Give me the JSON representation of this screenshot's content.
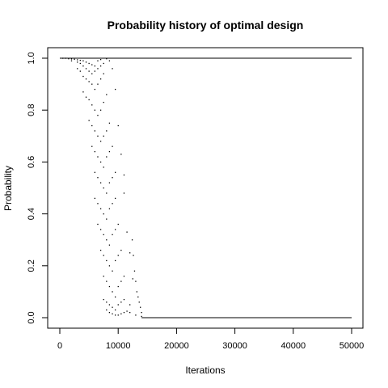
{
  "chart_data": {
    "type": "scatter",
    "title": "Probability history of optimal design",
    "xlabel": "Iterations",
    "ylabel": "Probability",
    "xlim": [
      0,
      50000
    ],
    "ylim": [
      0.0,
      1.0
    ],
    "x_ticks": [
      0,
      10000,
      20000,
      30000,
      40000,
      50000
    ],
    "x_tick_labels": [
      "0",
      "10000",
      "20000",
      "30000",
      "40000",
      "50000"
    ],
    "y_ticks": [
      0.0,
      0.2,
      0.4,
      0.6,
      0.8,
      1.0
    ],
    "y_tick_labels": [
      "0.0",
      "0.2",
      "0.4",
      "0.6",
      "0.8",
      "1.0"
    ],
    "grid": false,
    "series": [
      {
        "color": "#000000",
        "marker": "point",
        "segments": [
          {
            "x": [
              0,
              50000
            ],
            "y": [
              1.0,
              1.0
            ]
          },
          {
            "x": [
              14000,
              50000
            ],
            "y": [
              0.0,
              0.0
            ]
          }
        ],
        "points": [
          [
            500,
            1.0
          ],
          [
            1000,
            1.0
          ],
          [
            1500,
            0.998
          ],
          [
            2000,
            0.997
          ],
          [
            2500,
            0.996
          ],
          [
            3000,
            0.994
          ],
          [
            3500,
            0.992
          ],
          [
            4000,
            0.99
          ],
          [
            4500,
            0.985
          ],
          [
            5000,
            0.98
          ],
          [
            5500,
            0.975
          ],
          [
            6000,
            0.97
          ],
          [
            6500,
            0.99
          ],
          [
            7000,
            0.995
          ],
          [
            8000,
            0.998
          ],
          [
            2000,
            0.99
          ],
          [
            3000,
            0.985
          ],
          [
            3500,
            0.98
          ],
          [
            4000,
            0.97
          ],
          [
            4500,
            0.96
          ],
          [
            5000,
            0.95
          ],
          [
            5500,
            0.94
          ],
          [
            6000,
            0.95
          ],
          [
            6500,
            0.96
          ],
          [
            7000,
            0.97
          ],
          [
            7500,
            0.98
          ],
          [
            8500,
            0.99
          ],
          [
            3000,
            0.96
          ],
          [
            3500,
            0.95
          ],
          [
            4000,
            0.93
          ],
          [
            4500,
            0.92
          ],
          [
            5000,
            0.91
          ],
          [
            5500,
            0.9
          ],
          [
            6000,
            0.88
          ],
          [
            6500,
            0.9
          ],
          [
            7000,
            0.92
          ],
          [
            7500,
            0.94
          ],
          [
            9000,
            0.96
          ],
          [
            4000,
            0.87
          ],
          [
            4500,
            0.85
          ],
          [
            5000,
            0.84
          ],
          [
            5500,
            0.82
          ],
          [
            6000,
            0.8
          ],
          [
            6500,
            0.78
          ],
          [
            7000,
            0.8
          ],
          [
            7500,
            0.83
          ],
          [
            8000,
            0.86
          ],
          [
            9500,
            0.88
          ],
          [
            5000,
            0.76
          ],
          [
            5500,
            0.74
          ],
          [
            6000,
            0.72
          ],
          [
            6500,
            0.7
          ],
          [
            7000,
            0.68
          ],
          [
            7500,
            0.7
          ],
          [
            8000,
            0.72
          ],
          [
            8500,
            0.75
          ],
          [
            10000,
            0.74
          ],
          [
            5500,
            0.66
          ],
          [
            6000,
            0.64
          ],
          [
            6500,
            0.62
          ],
          [
            7000,
            0.6
          ],
          [
            7500,
            0.58
          ],
          [
            8000,
            0.62
          ],
          [
            8500,
            0.64
          ],
          [
            9000,
            0.66
          ],
          [
            10500,
            0.63
          ],
          [
            6000,
            0.56
          ],
          [
            6500,
            0.54
          ],
          [
            7000,
            0.52
          ],
          [
            7500,
            0.5
          ],
          [
            8000,
            0.48
          ],
          [
            8500,
            0.52
          ],
          [
            9000,
            0.54
          ],
          [
            9500,
            0.56
          ],
          [
            11000,
            0.55
          ],
          [
            6000,
            0.46
          ],
          [
            6500,
            0.44
          ],
          [
            7000,
            0.42
          ],
          [
            7500,
            0.4
          ],
          [
            8000,
            0.38
          ],
          [
            8500,
            0.42
          ],
          [
            9000,
            0.44
          ],
          [
            9500,
            0.46
          ],
          [
            11000,
            0.48
          ],
          [
            6500,
            0.36
          ],
          [
            7000,
            0.34
          ],
          [
            7500,
            0.32
          ],
          [
            8000,
            0.3
          ],
          [
            8500,
            0.28
          ],
          [
            9000,
            0.32
          ],
          [
            9500,
            0.34
          ],
          [
            10000,
            0.36
          ],
          [
            11500,
            0.33
          ],
          [
            7000,
            0.26
          ],
          [
            7500,
            0.24
          ],
          [
            8000,
            0.22
          ],
          [
            8500,
            0.2
          ],
          [
            9000,
            0.18
          ],
          [
            9500,
            0.22
          ],
          [
            10000,
            0.24
          ],
          [
            10500,
            0.26
          ],
          [
            12000,
            0.25
          ],
          [
            7500,
            0.16
          ],
          [
            8000,
            0.14
          ],
          [
            8500,
            0.12
          ],
          [
            9000,
            0.1
          ],
          [
            9500,
            0.08
          ],
          [
            10000,
            0.12
          ],
          [
            10500,
            0.14
          ],
          [
            11000,
            0.16
          ],
          [
            12500,
            0.15
          ],
          [
            7500,
            0.07
          ],
          [
            8000,
            0.06
          ],
          [
            8500,
            0.05
          ],
          [
            9000,
            0.04
          ],
          [
            9500,
            0.03
          ],
          [
            10000,
            0.05
          ],
          [
            10500,
            0.06
          ],
          [
            11000,
            0.07
          ],
          [
            12000,
            0.05
          ],
          [
            8000,
            0.03
          ],
          [
            8500,
            0.02
          ],
          [
            9000,
            0.015
          ],
          [
            9500,
            0.01
          ],
          [
            10000,
            0.01
          ],
          [
            10500,
            0.015
          ],
          [
            11000,
            0.02
          ],
          [
            11500,
            0.025
          ],
          [
            12000,
            0.02
          ],
          [
            13000,
            0.01
          ],
          [
            14000,
            0.005
          ],
          [
            12800,
            0.18
          ],
          [
            13000,
            0.14
          ],
          [
            13200,
            0.1
          ],
          [
            13400,
            0.08
          ],
          [
            13600,
            0.06
          ],
          [
            13800,
            0.04
          ],
          [
            14000,
            0.02
          ],
          [
            12600,
            0.24
          ],
          [
            12400,
            0.3
          ]
        ]
      }
    ]
  }
}
